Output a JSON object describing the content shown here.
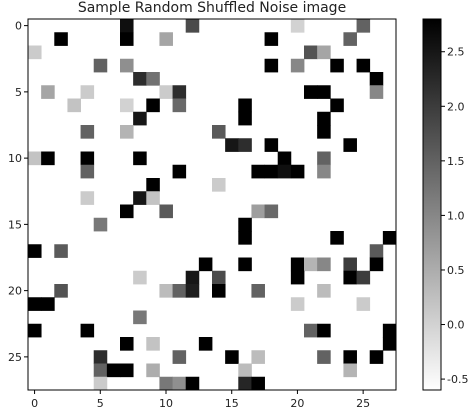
{
  "chart_data": {
    "type": "heatmap",
    "title": "Sample Random Shuffled Noise image",
    "colormap": "gray_r",
    "grid": false,
    "value_range": [
      -0.6,
      2.8
    ],
    "x_ticks": [
      "0",
      "5",
      "10",
      "15",
      "20",
      "25"
    ],
    "y_ticks": [
      "0",
      "5",
      "10",
      "15",
      "20",
      "25"
    ],
    "colorbar_ticks": [
      "-0.5",
      "0.0",
      "0.5",
      "1.0",
      "1.5",
      "2.0",
      "2.5"
    ],
    "size": [
      28,
      28
    ],
    "cells": [
      [
        0,
        7,
        2.6
      ],
      [
        0,
        12,
        1.8
      ],
      [
        0,
        20,
        0.0
      ],
      [
        0,
        25,
        1.5
      ],
      [
        1,
        2,
        2.8
      ],
      [
        1,
        7,
        2.8
      ],
      [
        1,
        10,
        0.6
      ],
      [
        1,
        18,
        2.8
      ],
      [
        1,
        24,
        1.5
      ],
      [
        2,
        0,
        0.1
      ],
      [
        2,
        21,
        1.7
      ],
      [
        2,
        22,
        0.6
      ],
      [
        3,
        5,
        1.5
      ],
      [
        3,
        7,
        0.9
      ],
      [
        3,
        18,
        2.8
      ],
      [
        3,
        20,
        1.0
      ],
      [
        3,
        23,
        2.8
      ],
      [
        3,
        25,
        2.8
      ],
      [
        4,
        8,
        2.2
      ],
      [
        4,
        9,
        1.3
      ],
      [
        4,
        26,
        2.8
      ],
      [
        5,
        1,
        0.6
      ],
      [
        5,
        4,
        0.1
      ],
      [
        5,
        10,
        0.1
      ],
      [
        5,
        11,
        2.2
      ],
      [
        5,
        21,
        2.8
      ],
      [
        5,
        22,
        2.8
      ],
      [
        5,
        26,
        1.0
      ],
      [
        6,
        3,
        0.2
      ],
      [
        6,
        7,
        0.0
      ],
      [
        6,
        9,
        2.8
      ],
      [
        6,
        11,
        1.4
      ],
      [
        6,
        16,
        2.8
      ],
      [
        6,
        23,
        2.8
      ],
      [
        7,
        8,
        2.5
      ],
      [
        7,
        16,
        2.8
      ],
      [
        7,
        22,
        2.8
      ],
      [
        8,
        4,
        1.5
      ],
      [
        8,
        7,
        0.4
      ],
      [
        8,
        14,
        1.6
      ],
      [
        8,
        22,
        2.8
      ],
      [
        9,
        15,
        2.5
      ],
      [
        9,
        16,
        2.2
      ],
      [
        9,
        18,
        2.8
      ],
      [
        9,
        24,
        2.8
      ],
      [
        10,
        0,
        0.2
      ],
      [
        10,
        1,
        2.8
      ],
      [
        10,
        4,
        2.8
      ],
      [
        10,
        8,
        2.8
      ],
      [
        10,
        19,
        2.8
      ],
      [
        10,
        22,
        1.5
      ],
      [
        11,
        4,
        1.5
      ],
      [
        11,
        11,
        2.8
      ],
      [
        11,
        17,
        2.8
      ],
      [
        11,
        18,
        2.8
      ],
      [
        11,
        19,
        2.6
      ],
      [
        11,
        20,
        2.8
      ],
      [
        11,
        22,
        1.0
      ],
      [
        12,
        9,
        2.8
      ],
      [
        12,
        14,
        0.1
      ],
      [
        13,
        4,
        0.1
      ],
      [
        13,
        8,
        2.5
      ],
      [
        13,
        9,
        0.2
      ],
      [
        14,
        7,
        2.8
      ],
      [
        14,
        10,
        1.6
      ],
      [
        14,
        17,
        0.7
      ],
      [
        14,
        18,
        1.4
      ],
      [
        15,
        5,
        1.2
      ],
      [
        15,
        16,
        2.8
      ],
      [
        16,
        16,
        2.8
      ],
      [
        16,
        23,
        2.8
      ],
      [
        16,
        27,
        2.8
      ],
      [
        17,
        0,
        2.8
      ],
      [
        17,
        2,
        1.6
      ],
      [
        17,
        26,
        1.6
      ],
      [
        18,
        13,
        2.8
      ],
      [
        18,
        16,
        2.8
      ],
      [
        18,
        20,
        2.8
      ],
      [
        18,
        21,
        0.4
      ],
      [
        18,
        22,
        1.0
      ],
      [
        18,
        24,
        2.0
      ],
      [
        18,
        26,
        2.8
      ],
      [
        19,
        8,
        0.1
      ],
      [
        19,
        12,
        2.5
      ],
      [
        19,
        14,
        1.8
      ],
      [
        19,
        20,
        2.8
      ],
      [
        19,
        24,
        2.8
      ],
      [
        19,
        25,
        2.0
      ],
      [
        20,
        2,
        1.7
      ],
      [
        20,
        10,
        0.3
      ],
      [
        20,
        11,
        1.5
      ],
      [
        20,
        12,
        2.4
      ],
      [
        20,
        14,
        2.8
      ],
      [
        20,
        17,
        1.5
      ],
      [
        20,
        22,
        0.3
      ],
      [
        21,
        0,
        2.8
      ],
      [
        21,
        1,
        2.8
      ],
      [
        21,
        20,
        0.1
      ],
      [
        21,
        25,
        0.1
      ],
      [
        22,
        8,
        1.2
      ],
      [
        23,
        0,
        2.8
      ],
      [
        23,
        4,
        2.8
      ],
      [
        23,
        21,
        1.5
      ],
      [
        23,
        22,
        2.8
      ],
      [
        23,
        27,
        2.8
      ],
      [
        24,
        7,
        2.8
      ],
      [
        24,
        9,
        0.2
      ],
      [
        24,
        13,
        2.8
      ],
      [
        24,
        27,
        2.8
      ],
      [
        25,
        5,
        2.2
      ],
      [
        25,
        11,
        1.5
      ],
      [
        25,
        15,
        2.8
      ],
      [
        25,
        17,
        0.3
      ],
      [
        25,
        22,
        1.5
      ],
      [
        25,
        24,
        2.8
      ],
      [
        25,
        26,
        2.8
      ],
      [
        26,
        5,
        1.5
      ],
      [
        26,
        6,
        2.8
      ],
      [
        26,
        7,
        2.8
      ],
      [
        26,
        9,
        0.5
      ],
      [
        26,
        16,
        0.3
      ],
      [
        26,
        24,
        0.4
      ],
      [
        27,
        5,
        0.1
      ],
      [
        27,
        10,
        1.2
      ],
      [
        27,
        11,
        0.9
      ],
      [
        27,
        12,
        2.8
      ],
      [
        27,
        16,
        2.3
      ],
      [
        27,
        17,
        2.8
      ]
    ]
  }
}
